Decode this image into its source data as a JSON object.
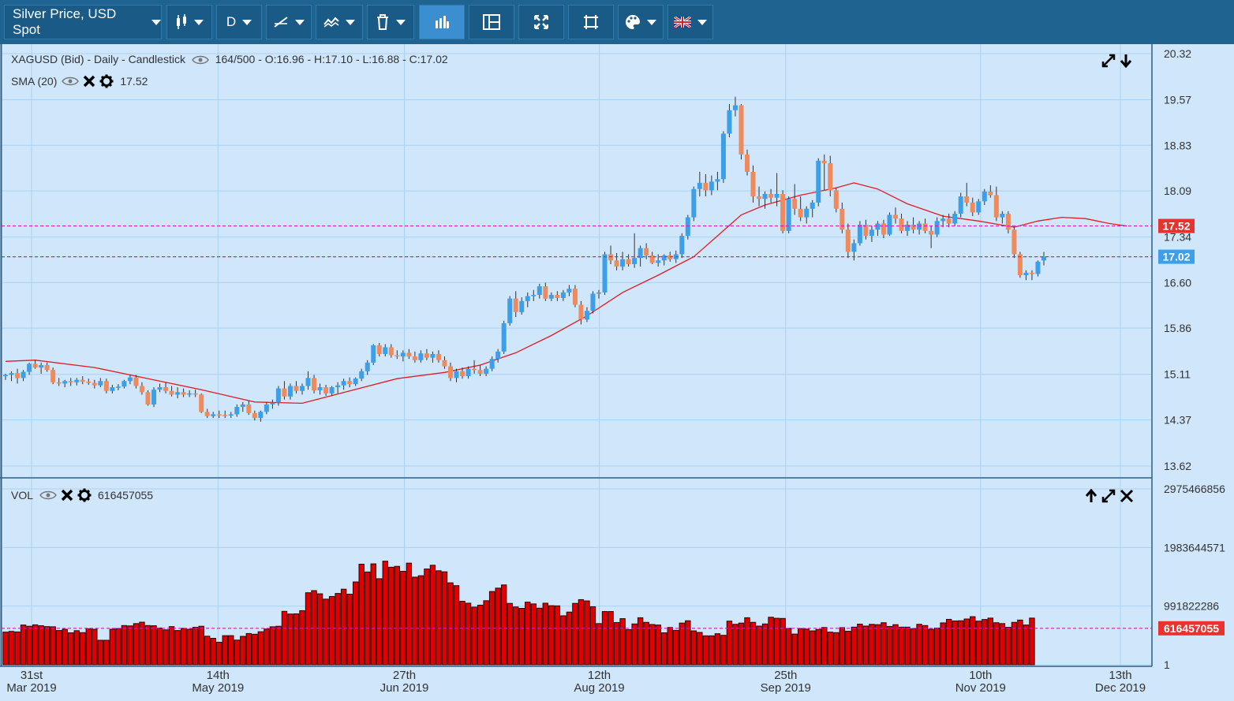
{
  "toolbar": {
    "instrument": "Silver Price, USD Spot",
    "timeframe": "D",
    "icons": [
      "candlestick-icon",
      "timeframe",
      "draw-line-icon",
      "indicators-icon",
      "delete-icon",
      "chart-type-icon",
      "layout-icon",
      "fullscreen-icon",
      "crop-icon",
      "palette-icon",
      "language-flag-icon"
    ]
  },
  "main_legend": {
    "title": "XAGUSD (Bid) - Daily - Candlestick",
    "ohlc": "164/500 - O:16.96 - H:17.10 - L:16.88 - C:17.02",
    "sma_label": "SMA (20)",
    "sma_value": "17.52"
  },
  "vol_legend": {
    "label": "VOL",
    "value": "616457055"
  },
  "colors": {
    "up": "#3d9fe8",
    "down": "#ee8a5c",
    "sma": "#e01b24",
    "volume": "#e00000",
    "ref_line": "#d81ab4",
    "bg": "#cfe6fb",
    "grid": "#a9d2f5"
  },
  "chart_data": {
    "type": "candlestick",
    "symbol": "XAGUSD",
    "price_axis": {
      "ticks": [
        "20.32",
        "19.57",
        "18.83",
        "18.09",
        "17.34",
        "16.60",
        "15.86",
        "15.11",
        "14.37",
        "13.62"
      ],
      "ylim": [
        13.62,
        20.32
      ]
    },
    "volume_axis": {
      "ticks": [
        "2975466856",
        "1983644571",
        "991822286",
        "1"
      ],
      "ylim": [
        1,
        2975466856
      ]
    },
    "price_tags": [
      {
        "label": "17.52",
        "value": 17.52,
        "color": "#e8322f"
      },
      {
        "label": "17.02",
        "value": 17.02,
        "color": "#3d9fe8"
      }
    ],
    "volume_tag": {
      "label": "616457055",
      "value": 616457055
    },
    "x_ticks": [
      {
        "day": "31st",
        "month": "Mar 2019",
        "date": "2019-03-31"
      },
      {
        "day": "14th",
        "month": "May 2019",
        "date": "2019-05-14"
      },
      {
        "day": "27th",
        "month": "Jun 2019",
        "date": "2019-06-27"
      },
      {
        "day": "12th",
        "month": "Aug 2019",
        "date": "2019-08-12"
      },
      {
        "day": "25th",
        "month": "Sep 2019",
        "date": "2019-09-25"
      },
      {
        "day": "10th",
        "month": "Nov 2019",
        "date": "2019-11-10"
      },
      {
        "day": "13th",
        "month": "Dec 2019",
        "date": "2019-12-13"
      }
    ],
    "ohlc": [
      [
        15.08,
        15.12,
        15.02,
        15.1
      ],
      [
        15.1,
        15.16,
        15.0,
        15.13
      ],
      [
        15.13,
        15.2,
        14.96,
        15.05
      ],
      [
        15.05,
        15.18,
        15.0,
        15.15
      ],
      [
        15.15,
        15.3,
        15.1,
        15.28
      ],
      [
        15.28,
        15.34,
        15.2,
        15.22
      ],
      [
        15.22,
        15.3,
        15.12,
        15.26
      ],
      [
        15.26,
        15.3,
        15.15,
        15.18
      ],
      [
        15.18,
        15.22,
        14.95,
        14.98
      ],
      [
        14.98,
        15.05,
        14.92,
        14.96
      ],
      [
        14.96,
        15.02,
        14.9,
        15.0
      ],
      [
        15.0,
        15.05,
        14.92,
        14.98
      ],
      [
        14.98,
        15.05,
        14.93,
        15.02
      ],
      [
        15.02,
        15.08,
        14.95,
        14.99
      ],
      [
        14.99,
        15.04,
        14.94,
        14.97
      ],
      [
        14.97,
        15.02,
        14.88,
        14.93
      ],
      [
        14.93,
        15.05,
        14.9,
        15.0
      ],
      [
        15.0,
        15.04,
        14.8,
        14.84
      ],
      [
        14.84,
        14.94,
        14.8,
        14.9
      ],
      [
        14.9,
        14.95,
        14.85,
        14.91
      ],
      [
        14.91,
        15.02,
        14.88,
        15.0
      ],
      [
        15.0,
        15.1,
        14.95,
        15.06
      ],
      [
        15.06,
        15.1,
        14.88,
        14.92
      ],
      [
        14.92,
        14.98,
        14.78,
        14.82
      ],
      [
        14.82,
        14.85,
        14.6,
        14.62
      ],
      [
        14.62,
        14.9,
        14.58,
        14.86
      ],
      [
        14.86,
        14.96,
        14.82,
        14.9
      ],
      [
        14.9,
        14.98,
        14.8,
        14.84
      ],
      [
        14.84,
        14.92,
        14.75,
        14.78
      ],
      [
        14.78,
        14.9,
        14.72,
        14.82
      ],
      [
        14.82,
        14.88,
        14.74,
        14.78
      ],
      [
        14.78,
        14.85,
        14.74,
        14.8
      ],
      [
        14.8,
        14.86,
        14.74,
        14.78
      ],
      [
        14.78,
        14.8,
        14.48,
        14.5
      ],
      [
        14.5,
        14.55,
        14.4,
        14.43
      ],
      [
        14.43,
        14.5,
        14.4,
        14.46
      ],
      [
        14.46,
        14.52,
        14.4,
        14.45
      ],
      [
        14.45,
        14.52,
        14.4,
        14.44
      ],
      [
        14.44,
        14.5,
        14.4,
        14.46
      ],
      [
        14.46,
        14.62,
        14.42,
        14.58
      ],
      [
        14.58,
        14.66,
        14.5,
        14.62
      ],
      [
        14.62,
        14.68,
        14.45,
        14.48
      ],
      [
        14.48,
        14.52,
        14.36,
        14.4
      ],
      [
        14.4,
        14.52,
        14.34,
        14.5
      ],
      [
        14.5,
        14.66,
        14.46,
        14.62
      ],
      [
        14.62,
        14.7,
        14.55,
        14.65
      ],
      [
        14.65,
        14.92,
        14.6,
        14.88
      ],
      [
        14.88,
        15.0,
        14.7,
        14.75
      ],
      [
        14.75,
        14.96,
        14.7,
        14.92
      ],
      [
        14.92,
        15.0,
        14.8,
        14.84
      ],
      [
        14.84,
        14.96,
        14.78,
        14.92
      ],
      [
        14.92,
        15.16,
        14.86,
        15.05
      ],
      [
        15.05,
        15.1,
        14.8,
        14.85
      ],
      [
        14.85,
        14.96,
        14.78,
        14.9
      ],
      [
        14.9,
        14.94,
        14.76,
        14.8
      ],
      [
        14.8,
        14.92,
        14.76,
        14.9
      ],
      [
        14.9,
        14.98,
        14.8,
        14.93
      ],
      [
        14.93,
        15.04,
        14.86,
        15.0
      ],
      [
        15.0,
        15.06,
        14.9,
        14.95
      ],
      [
        14.95,
        15.06,
        14.92,
        15.04
      ],
      [
        15.04,
        15.2,
        15.0,
        15.16
      ],
      [
        15.16,
        15.34,
        15.1,
        15.3
      ],
      [
        15.3,
        15.6,
        15.26,
        15.58
      ],
      [
        15.58,
        15.62,
        15.4,
        15.44
      ],
      [
        15.44,
        15.6,
        15.4,
        15.55
      ],
      [
        15.55,
        15.6,
        15.38,
        15.42
      ],
      [
        15.42,
        15.5,
        15.36,
        15.4
      ],
      [
        15.4,
        15.5,
        15.32,
        15.46
      ],
      [
        15.46,
        15.52,
        15.36,
        15.4
      ],
      [
        15.4,
        15.48,
        15.3,
        15.34
      ],
      [
        15.34,
        15.5,
        15.3,
        15.45
      ],
      [
        15.45,
        15.52,
        15.34,
        15.38
      ],
      [
        15.38,
        15.48,
        15.3,
        15.44
      ],
      [
        15.44,
        15.5,
        15.3,
        15.34
      ],
      [
        15.34,
        15.4,
        15.2,
        15.24
      ],
      [
        15.24,
        15.3,
        15.0,
        15.05
      ],
      [
        15.05,
        15.2,
        14.98,
        15.16
      ],
      [
        15.16,
        15.22,
        15.04,
        15.08
      ],
      [
        15.08,
        15.24,
        15.04,
        15.2
      ],
      [
        15.2,
        15.34,
        15.12,
        15.18
      ],
      [
        15.18,
        15.26,
        15.08,
        15.12
      ],
      [
        15.12,
        15.24,
        15.08,
        15.2
      ],
      [
        15.2,
        15.4,
        15.16,
        15.36
      ],
      [
        15.36,
        15.52,
        15.3,
        15.48
      ],
      [
        15.48,
        15.98,
        15.44,
        15.94
      ],
      [
        15.94,
        16.38,
        15.9,
        16.34
      ],
      [
        16.34,
        16.46,
        16.04,
        16.12
      ],
      [
        16.12,
        16.36,
        16.08,
        16.3
      ],
      [
        16.3,
        16.44,
        16.2,
        16.38
      ],
      [
        16.38,
        16.48,
        16.3,
        16.4
      ],
      [
        16.4,
        16.58,
        16.34,
        16.54
      ],
      [
        16.54,
        16.6,
        16.3,
        16.34
      ],
      [
        16.34,
        16.44,
        16.3,
        16.4
      ],
      [
        16.4,
        16.46,
        16.3,
        16.35
      ],
      [
        16.35,
        16.48,
        16.3,
        16.44
      ],
      [
        16.44,
        16.56,
        16.38,
        16.5
      ],
      [
        16.5,
        16.56,
        16.2,
        16.24
      ],
      [
        16.24,
        16.3,
        15.92,
        16.0
      ],
      [
        16.0,
        16.2,
        15.96,
        16.14
      ],
      [
        16.14,
        16.46,
        16.1,
        16.42
      ],
      [
        16.42,
        16.48,
        16.34,
        16.44
      ],
      [
        16.44,
        17.1,
        16.4,
        17.06
      ],
      [
        17.06,
        17.2,
        16.9,
        16.96
      ],
      [
        16.96,
        17.08,
        16.8,
        16.86
      ],
      [
        16.86,
        17.1,
        16.8,
        16.98
      ],
      [
        16.98,
        17.06,
        16.86,
        16.9
      ],
      [
        16.9,
        17.4,
        16.84,
        17.0
      ],
      [
        17.0,
        17.2,
        16.86,
        17.16
      ],
      [
        17.16,
        17.24,
        16.98,
        17.04
      ],
      [
        17.04,
        17.1,
        16.9,
        16.92
      ],
      [
        16.92,
        17.06,
        16.86,
        16.96
      ],
      [
        16.96,
        17.06,
        16.88,
        17.04
      ],
      [
        17.04,
        17.1,
        16.94,
        16.98
      ],
      [
        16.98,
        17.12,
        16.92,
        17.06
      ],
      [
        17.06,
        17.4,
        17.0,
        17.36
      ],
      [
        17.36,
        17.7,
        17.3,
        17.66
      ],
      [
        17.66,
        18.16,
        17.6,
        18.12
      ],
      [
        18.12,
        18.4,
        18.0,
        18.22
      ],
      [
        18.22,
        18.36,
        18.0,
        18.1
      ],
      [
        18.1,
        18.34,
        18.02,
        18.24
      ],
      [
        18.24,
        18.4,
        18.1,
        18.28
      ],
      [
        18.28,
        19.06,
        18.22,
        19.02
      ],
      [
        19.02,
        19.5,
        18.96,
        19.4
      ],
      [
        19.4,
        19.62,
        19.3,
        19.48
      ],
      [
        19.48,
        19.5,
        18.6,
        18.68
      ],
      [
        18.68,
        18.76,
        18.34,
        18.4
      ],
      [
        18.4,
        18.5,
        17.9,
        18.0
      ],
      [
        18.0,
        18.16,
        17.84,
        17.96
      ],
      [
        17.96,
        18.08,
        17.8,
        18.04
      ],
      [
        18.04,
        18.12,
        17.9,
        17.98
      ],
      [
        17.98,
        18.38,
        17.84,
        18.04
      ],
      [
        18.04,
        18.1,
        17.4,
        17.44
      ],
      [
        17.44,
        18.0,
        17.4,
        17.96
      ],
      [
        17.96,
        18.2,
        17.7,
        17.8
      ],
      [
        17.8,
        18.0,
        17.6,
        17.66
      ],
      [
        17.66,
        17.84,
        17.56,
        17.8
      ],
      [
        17.8,
        17.94,
        17.66,
        17.9
      ],
      [
        17.9,
        18.62,
        17.84,
        18.58
      ],
      [
        18.58,
        18.68,
        18.1,
        18.54
      ],
      [
        18.54,
        18.66,
        18.0,
        18.1
      ],
      [
        18.1,
        18.14,
        17.74,
        17.8
      ],
      [
        17.8,
        17.9,
        17.4,
        17.46
      ],
      [
        17.46,
        17.56,
        17.0,
        17.1
      ],
      [
        17.1,
        17.3,
        16.96,
        17.24
      ],
      [
        17.24,
        17.6,
        17.2,
        17.54
      ],
      [
        17.54,
        17.62,
        17.3,
        17.36
      ],
      [
        17.36,
        17.52,
        17.26,
        17.46
      ],
      [
        17.46,
        17.6,
        17.36,
        17.56
      ],
      [
        17.56,
        17.62,
        17.32,
        17.38
      ],
      [
        17.38,
        17.74,
        17.36,
        17.7
      ],
      [
        17.7,
        17.82,
        17.56,
        17.64
      ],
      [
        17.64,
        17.72,
        17.4,
        17.44
      ],
      [
        17.44,
        17.6,
        17.36,
        17.54
      ],
      [
        17.54,
        17.66,
        17.4,
        17.46
      ],
      [
        17.46,
        17.6,
        17.38,
        17.56
      ],
      [
        17.56,
        17.64,
        17.4,
        17.44
      ],
      [
        17.44,
        17.52,
        17.16,
        17.38
      ],
      [
        17.38,
        17.66,
        17.34,
        17.6
      ],
      [
        17.6,
        17.7,
        17.5,
        17.64
      ],
      [
        17.64,
        17.72,
        17.5,
        17.56
      ],
      [
        17.56,
        17.76,
        17.52,
        17.72
      ],
      [
        17.72,
        18.06,
        17.66,
        18.0
      ],
      [
        18.0,
        18.22,
        17.84,
        17.9
      ],
      [
        17.9,
        17.98,
        17.68,
        17.74
      ],
      [
        17.74,
        17.96,
        17.7,
        17.92
      ],
      [
        17.92,
        18.12,
        17.86,
        18.08
      ],
      [
        18.08,
        18.18,
        17.98,
        18.02
      ],
      [
        18.02,
        18.16,
        17.6,
        17.66
      ],
      [
        17.66,
        17.76,
        17.56,
        17.72
      ],
      [
        17.72,
        17.76,
        17.4,
        17.46
      ],
      [
        17.46,
        17.5,
        17.0,
        17.06
      ],
      [
        17.06,
        17.1,
        16.68,
        16.72
      ],
      [
        16.72,
        16.8,
        16.64,
        16.76
      ],
      [
        16.76,
        16.8,
        16.64,
        16.74
      ],
      [
        16.74,
        16.96,
        16.7,
        16.94
      ],
      [
        16.96,
        17.1,
        16.88,
        17.02
      ]
    ],
    "sma": [
      [
        0,
        15.32
      ],
      [
        5,
        15.34
      ],
      [
        15,
        15.22
      ],
      [
        25,
        15.02
      ],
      [
        33,
        14.86
      ],
      [
        42,
        14.66
      ],
      [
        50,
        14.64
      ],
      [
        58,
        14.84
      ],
      [
        66,
        15.04
      ],
      [
        74,
        15.14
      ],
      [
        80,
        15.26
      ],
      [
        86,
        15.46
      ],
      [
        92,
        15.74
      ],
      [
        98,
        16.06
      ],
      [
        104,
        16.44
      ],
      [
        110,
        16.72
      ],
      [
        116,
        17.02
      ],
      [
        120,
        17.36
      ],
      [
        124,
        17.7
      ],
      [
        128,
        17.86
      ],
      [
        134,
        18.02
      ],
      [
        140,
        18.14
      ],
      [
        143,
        18.22
      ],
      [
        147,
        18.12
      ],
      [
        152,
        17.88
      ],
      [
        158,
        17.68
      ],
      [
        164,
        17.6
      ],
      [
        170,
        17.5
      ],
      [
        174,
        17.6
      ],
      [
        178,
        17.66
      ],
      [
        182,
        17.64
      ],
      [
        186,
        17.56
      ],
      [
        189,
        17.52
      ]
    ],
    "volume": [
      184,
      188,
      185,
      224,
      217,
      225,
      220,
      215,
      214,
      193,
      200,
      180,
      192,
      181,
      203,
      200,
      138,
      138,
      200,
      204,
      221,
      219,
      232,
      240,
      221,
      220,
      207,
      197,
      215,
      193,
      205,
      200,
      211,
      217,
      161,
      149,
      127,
      164,
      164,
      139,
      160,
      176,
      172,
      186,
      201,
      214,
      217,
      301,
      286,
      287,
      305,
      406,
      418,
      400,
      370,
      385,
      402,
      426,
      398,
      467,
      567,
      523,
      569,
      485,
      584,
      550,
      555,
      527,
      573,
      494,
      502,
      540,
      561,
      530,
      524,
      462,
      446,
      358,
      347,
      325,
      336,
      361,
      413,
      432,
      450,
      346,
      326,
      318,
      353,
      343,
      319,
      347,
      333,
      332,
      276,
      297,
      346,
      367,
      360,
      327,
      232,
      300,
      300,
      238,
      260,
      198,
      230,
      265,
      239,
      227,
      224,
      180,
      210,
      194,
      235,
      248,
      191,
      182,
      163,
      163,
      175,
      166,
      246,
      228,
      235,
      265,
      239,
      218,
      230,
      268,
      262,
      261,
      205,
      173,
      204,
      201,
      191,
      199,
      210,
      184,
      181,
      209,
      189,
      212,
      229,
      218,
      228,
      226,
      237,
      216,
      226,
      212,
      212,
      203,
      228,
      221,
      200,
      207,
      236,
      256,
      247,
      248,
      258,
      271,
      246,
      255,
      263,
      237,
      232,
      211,
      239,
      252,
      224,
      263
    ],
    "volume_scale_max": 3000000000
  }
}
